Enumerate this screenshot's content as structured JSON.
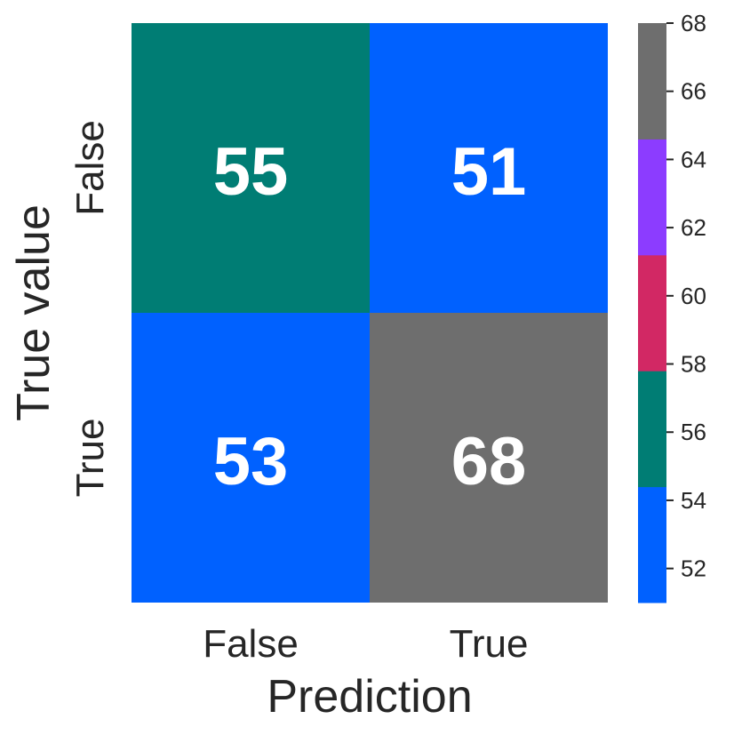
{
  "chart_data": {
    "type": "heatmap",
    "title": "",
    "xlabel": "Prediction",
    "ylabel": "True value",
    "x_categories": [
      "False",
      "True"
    ],
    "y_categories": [
      "False",
      "True"
    ],
    "values": [
      [
        55,
        51
      ],
      [
        53,
        68
      ]
    ],
    "colorbar": {
      "range": [
        51,
        68
      ],
      "ticks": [
        52,
        54,
        56,
        58,
        60,
        62,
        64,
        66,
        68
      ],
      "bins": [
        {
          "from": 51.0,
          "to": 54.4,
          "color": "#0061ff"
        },
        {
          "from": 54.4,
          "to": 57.8,
          "color": "#007d74"
        },
        {
          "from": 57.8,
          "to": 61.2,
          "color": "#d22864"
        },
        {
          "from": 61.2,
          "to": 64.6,
          "color": "#8c3cff"
        },
        {
          "from": 64.6,
          "to": 68.0,
          "color": "#6e6e6e"
        }
      ]
    },
    "legend_placement": "right",
    "grid": false
  }
}
